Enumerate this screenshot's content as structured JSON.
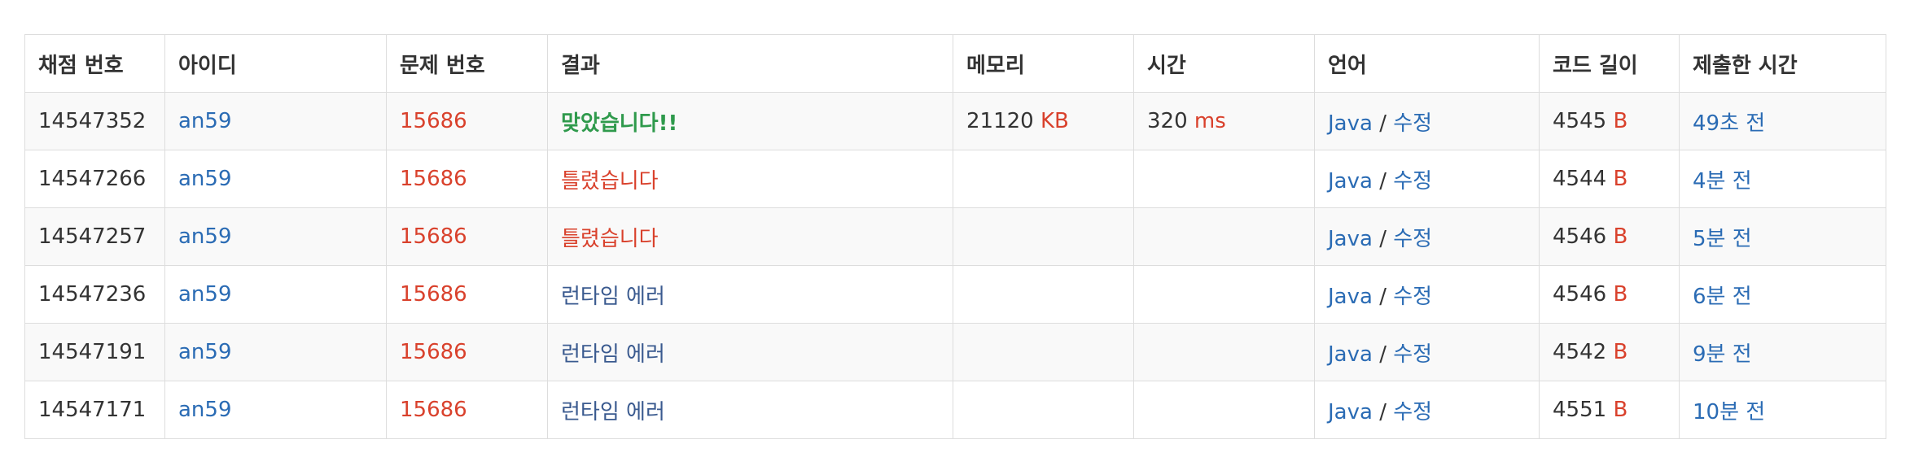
{
  "headers": {
    "submission_id": "채점 번호",
    "user_id": "아이디",
    "problem_id": "문제 번호",
    "result": "결과",
    "memory": "메모리",
    "time": "시간",
    "language": "언어",
    "code_length": "코드 길이",
    "submitted_at": "제출한 시간"
  },
  "units": {
    "memory": "KB",
    "time": "ms",
    "code_length": "B"
  },
  "language_edit_separator": "/",
  "colors": {
    "link": "#2a6bb4",
    "accepted": "#2f9a4c",
    "wrong": "#d9412c",
    "runtime_error": "#3a5a8f",
    "unit": "#d9412c",
    "row_stripe": "#f9f9f9",
    "border": "#dddddd"
  },
  "rows": [
    {
      "submission_id": "14547352",
      "user_id": "an59",
      "problem_id": "15686",
      "result": "맞았습니다!!",
      "result_type": "accepted",
      "memory": "21120",
      "time": "320",
      "language": "Java",
      "edit": "수정",
      "code_length": "4545",
      "submitted_at": "49초 전"
    },
    {
      "submission_id": "14547266",
      "user_id": "an59",
      "problem_id": "15686",
      "result": "틀렸습니다",
      "result_type": "wrong",
      "memory": "",
      "time": "",
      "language": "Java",
      "edit": "수정",
      "code_length": "4544",
      "submitted_at": "4분 전"
    },
    {
      "submission_id": "14547257",
      "user_id": "an59",
      "problem_id": "15686",
      "result": "틀렸습니다",
      "result_type": "wrong",
      "memory": "",
      "time": "",
      "language": "Java",
      "edit": "수정",
      "code_length": "4546",
      "submitted_at": "5분 전"
    },
    {
      "submission_id": "14547236",
      "user_id": "an59",
      "problem_id": "15686",
      "result": "런타임 에러",
      "result_type": "runtime_error",
      "memory": "",
      "time": "",
      "language": "Java",
      "edit": "수정",
      "code_length": "4546",
      "submitted_at": "6분 전"
    },
    {
      "submission_id": "14547191",
      "user_id": "an59",
      "problem_id": "15686",
      "result": "런타임 에러",
      "result_type": "runtime_error",
      "memory": "",
      "time": "",
      "language": "Java",
      "edit": "수정",
      "code_length": "4542",
      "submitted_at": "9분 전"
    },
    {
      "submission_id": "14547171",
      "user_id": "an59",
      "problem_id": "15686",
      "result": "런타임 에러",
      "result_type": "runtime_error",
      "memory": "",
      "time": "",
      "language": "Java",
      "edit": "수정",
      "code_length": "4551",
      "submitted_at": "10분 전"
    }
  ]
}
